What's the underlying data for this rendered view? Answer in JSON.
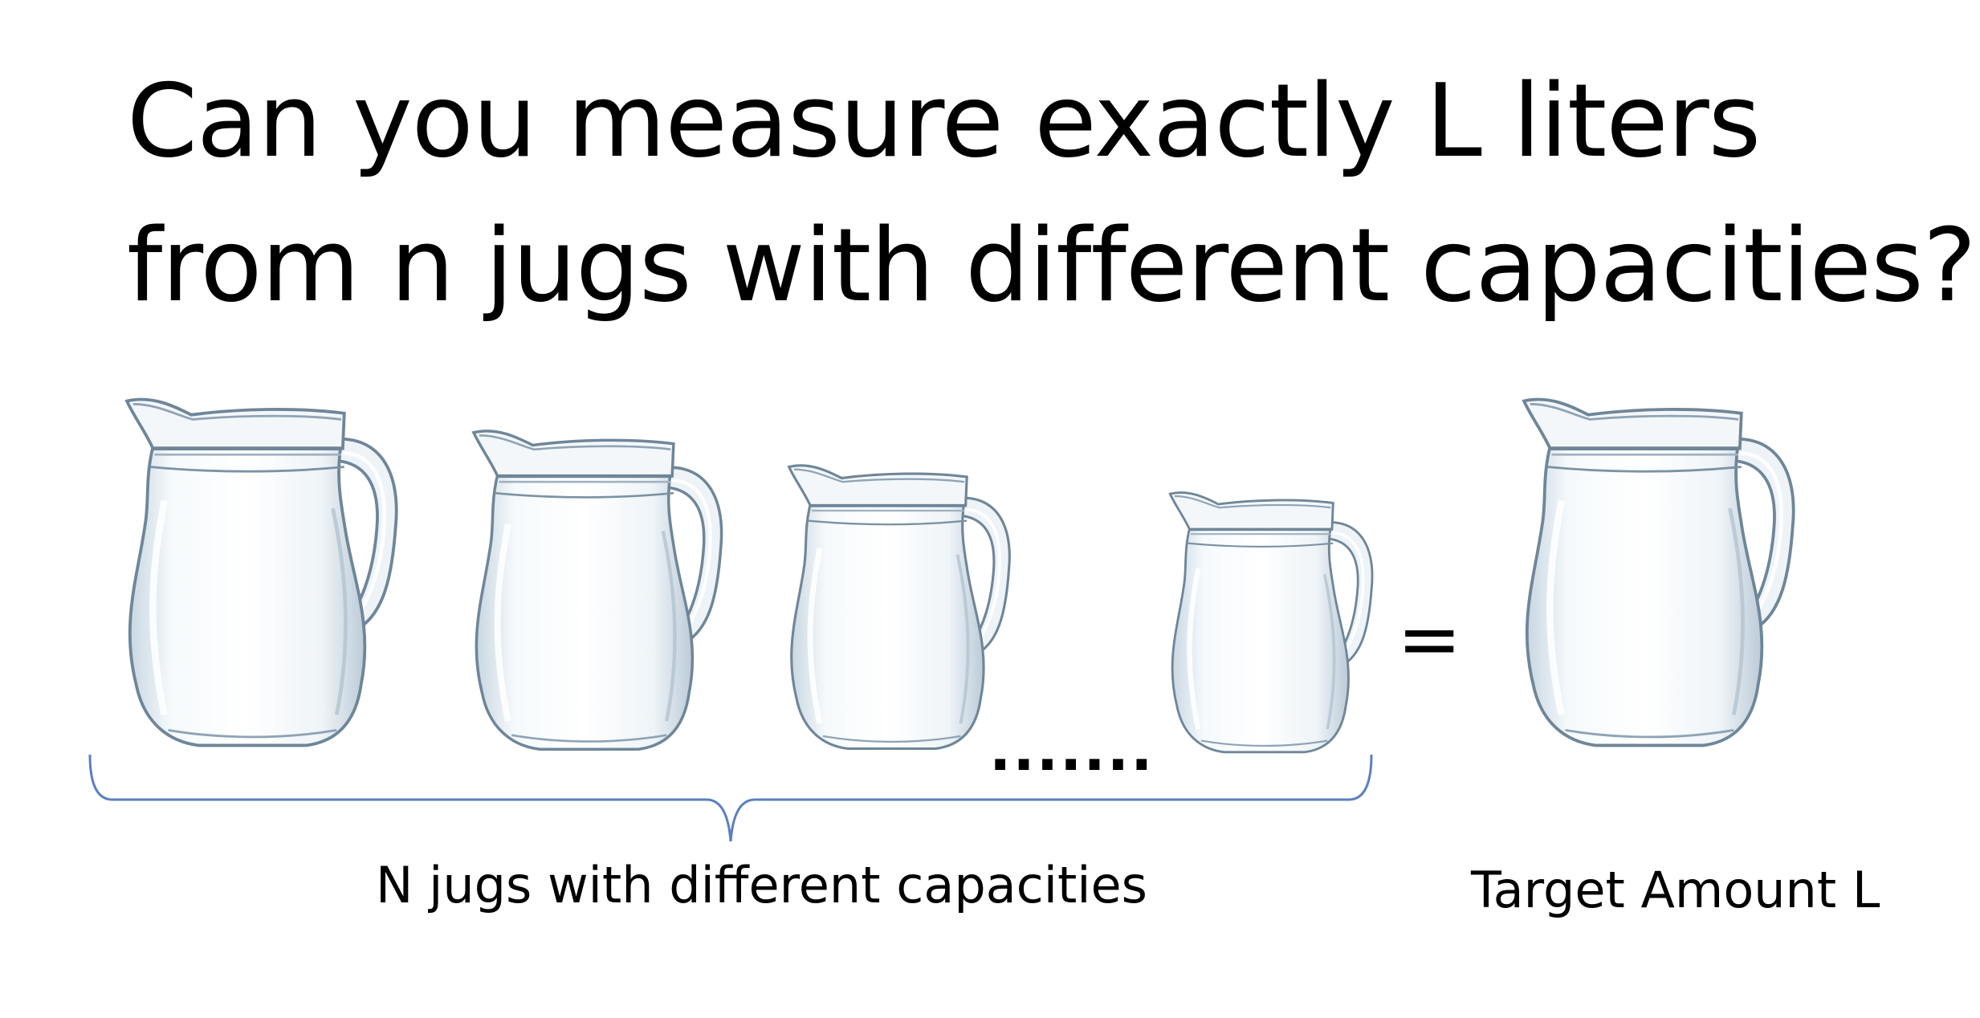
{
  "title": {
    "line1": "Can you measure exactly L liters",
    "line2": "from n jugs with different capacities?"
  },
  "ellipsis": ".......",
  "equals_sign": "=",
  "brace_label": "N jugs with different capacities",
  "target_label": "Target Amount L",
  "jugs": [
    "glass-pitcher",
    "glass-pitcher",
    "glass-pitcher",
    "glass-pitcher",
    "glass-pitcher"
  ],
  "colors": {
    "brace": "#5b7fc0",
    "glass_stroke": "#7f96a8",
    "glass_fill": "#eef4f8"
  }
}
